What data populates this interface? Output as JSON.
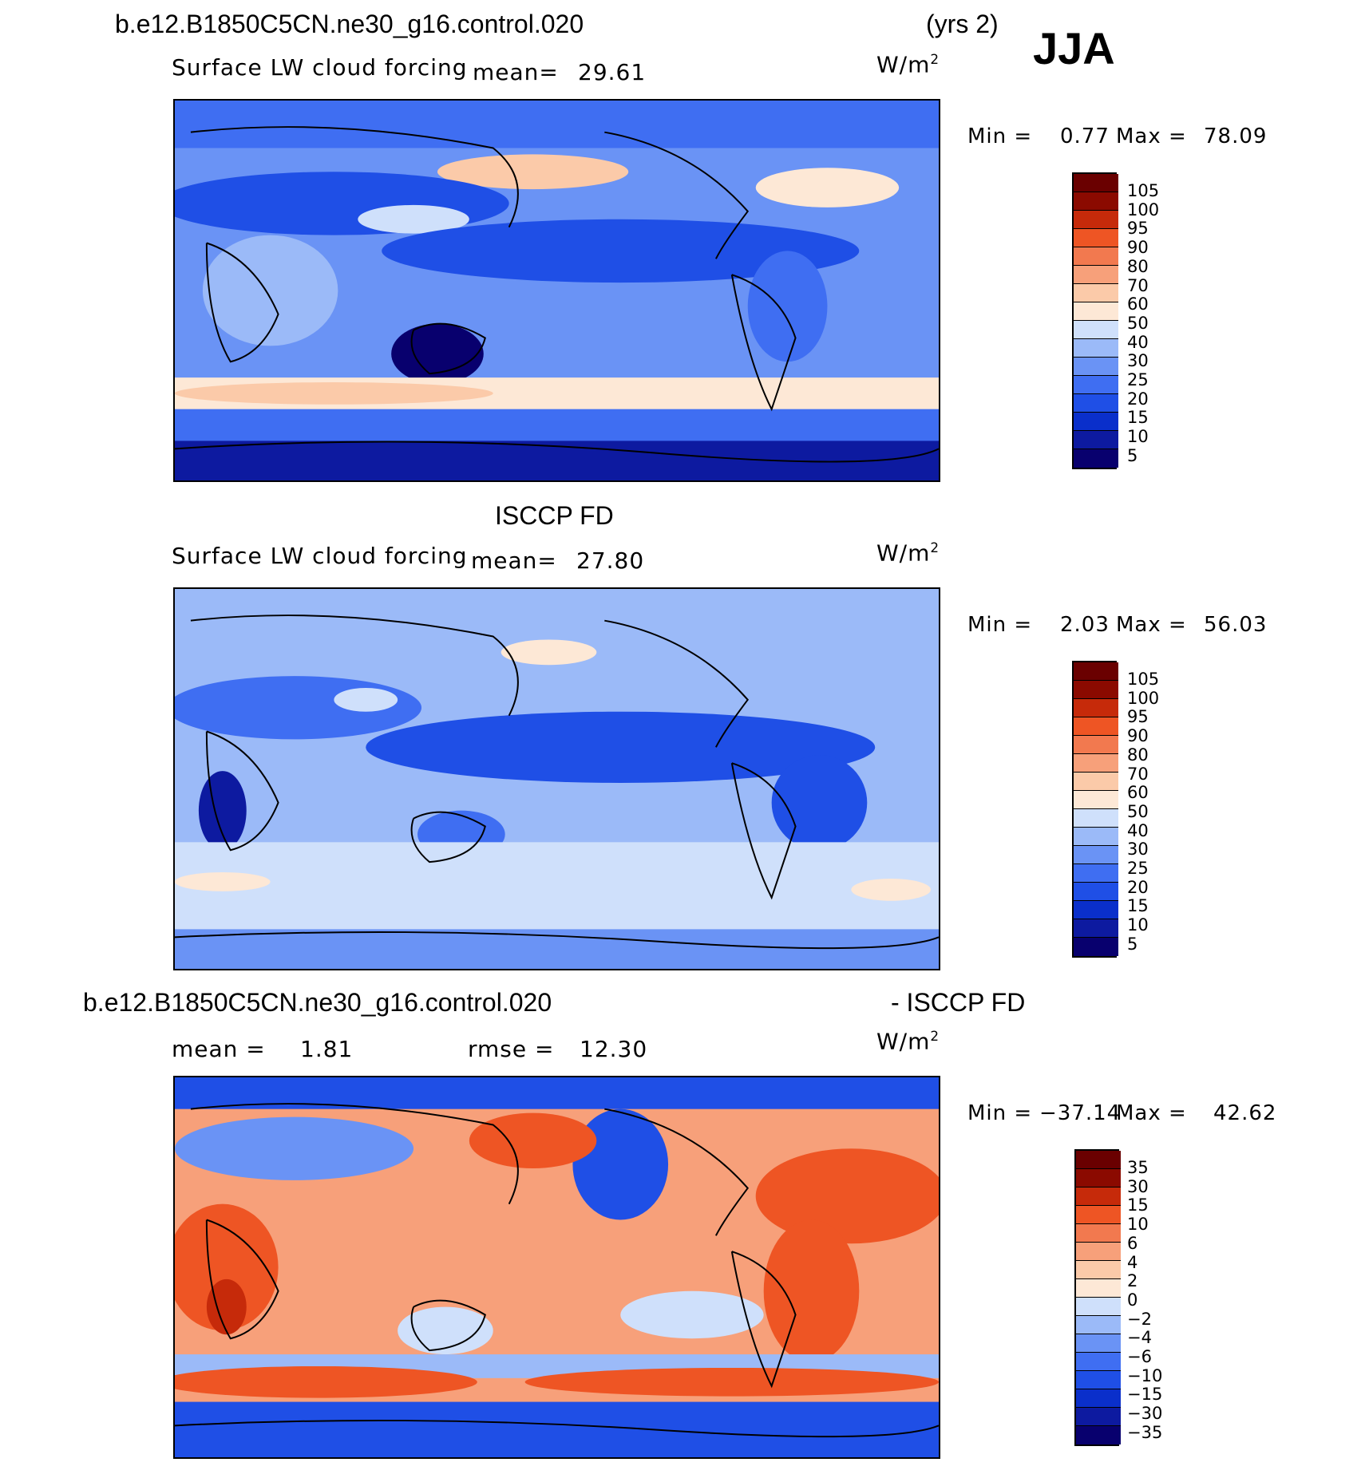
{
  "header": {
    "case_name": "b.e12.B1850C5CN.ne30_g16.control.020",
    "years": "(yrs 2)",
    "season": "JJA"
  },
  "panels": [
    {
      "title": "",
      "variable": "Surface LW cloud forcing",
      "mean_label": "mean=",
      "mean_value": "29.61",
      "units": "W/m",
      "units_sup": "2",
      "min_label": "Min =",
      "min_value": "0.77",
      "max_label": "Max =",
      "max_value": "78.09",
      "colorbar_levels": [
        "105",
        "100",
        "95",
        "90",
        "80",
        "70",
        "60",
        "50",
        "40",
        "30",
        "25",
        "20",
        "15",
        "10",
        "5"
      ]
    },
    {
      "title": "ISCCP FD",
      "variable": "Surface LW cloud forcing",
      "mean_label": "mean=",
      "mean_value": "27.80",
      "units": "W/m",
      "units_sup": "2",
      "min_label": "Min =",
      "min_value": "2.03",
      "max_label": "Max =",
      "max_value": "56.03",
      "colorbar_levels": [
        "105",
        "100",
        "95",
        "90",
        "80",
        "70",
        "60",
        "50",
        "40",
        "30",
        "25",
        "20",
        "15",
        "10",
        "5"
      ]
    },
    {
      "title_left": "b.e12.B1850C5CN.ne30_g16.control.020",
      "title_right": "- ISCCP FD",
      "mean_label": "mean =",
      "mean_value": "1.81",
      "rmse_label": "rmse =",
      "rmse_value": "12.30",
      "units": "W/m",
      "units_sup": "2",
      "min_label": "Min =",
      "min_value": "−37.14",
      "max_label": "Max =",
      "max_value": "42.62",
      "colorbar_levels": [
        "35",
        "30",
        "15",
        "10",
        "6",
        "4",
        "2",
        "0",
        "−2",
        "−4",
        "−6",
        "−10",
        "−15",
        "−30",
        "−35"
      ]
    }
  ],
  "colors": {
    "abs_scale": [
      "#08006e",
      "#0d1aa0",
      "#0a2fcb",
      "#1f4fe6",
      "#3f6ef2",
      "#6a93f5",
      "#9bbaf8",
      "#cfe0fb",
      "#fde8d6",
      "#fbcaa9",
      "#f7a07a",
      "#f2794f",
      "#ee5524",
      "#c62a0a",
      "#8b0a00",
      "#6a0000"
    ],
    "diff_scale": [
      "#08006e",
      "#0d1aa0",
      "#0a2fcb",
      "#1f4fe6",
      "#3f6ef2",
      "#6a93f5",
      "#9bbaf8",
      "#cfe0fb",
      "#fde8d6",
      "#fbcaa9",
      "#f7a07a",
      "#f2794f",
      "#ee5524",
      "#c62a0a",
      "#8b0a00",
      "#6a0000"
    ]
  }
}
